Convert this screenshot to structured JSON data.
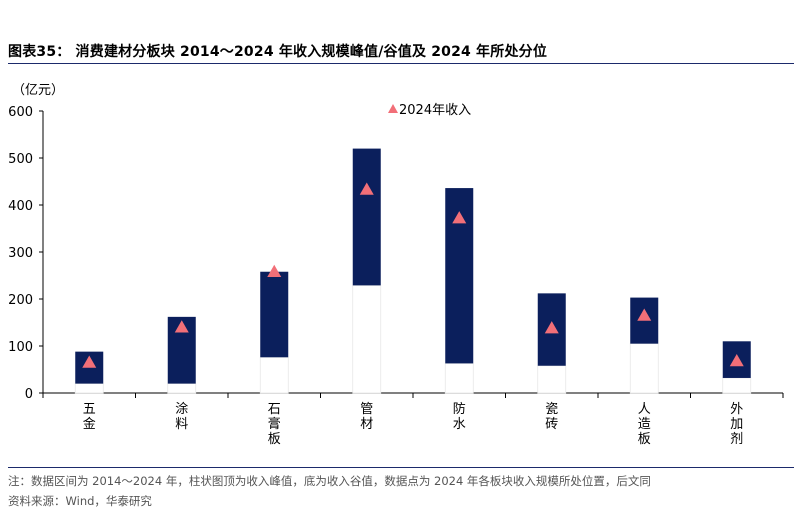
{
  "title": "图表35：  消费建材分板块 2014～2024 年收入规模峰值/谷值及 2024 年所处分位",
  "note": "注：数据区间为 2014～2024 年，柱状图顶为收入峰值，底为收入谷值，数据点为 2024 年各板块收入规模所处位置，后文同",
  "source": "资料来源：Wind，华泰研究",
  "colors": {
    "bar": "#0b1f5c",
    "marker": "#f26f78",
    "axis": "#000000",
    "rule": "#1b2a6b"
  },
  "chart_data": {
    "type": "bar",
    "subtype": "floating-range-with-markers",
    "unit_label": "（亿元）",
    "ylim": [
      0,
      600
    ],
    "yticks": [
      0,
      100,
      200,
      300,
      400,
      500,
      600
    ],
    "grid": false,
    "legend_position": "top-center",
    "legend": [
      "2024年收入"
    ],
    "categories": [
      "五\n金",
      "涂\n料",
      "石\n膏\n板",
      "管\n材",
      "防\n水",
      "瓷\n砖",
      "人\n造\n板",
      "外\n加\n剂"
    ],
    "series": [
      {
        "name": "峰值",
        "values": [
          88,
          162,
          258,
          520,
          436,
          212,
          203,
          110
        ]
      },
      {
        "name": "谷值",
        "values": [
          20,
          20,
          76,
          229,
          63,
          58,
          105,
          32
        ]
      },
      {
        "name": "2024年收入",
        "values": [
          65,
          140,
          258,
          433,
          372,
          138,
          165,
          68
        ]
      }
    ]
  }
}
